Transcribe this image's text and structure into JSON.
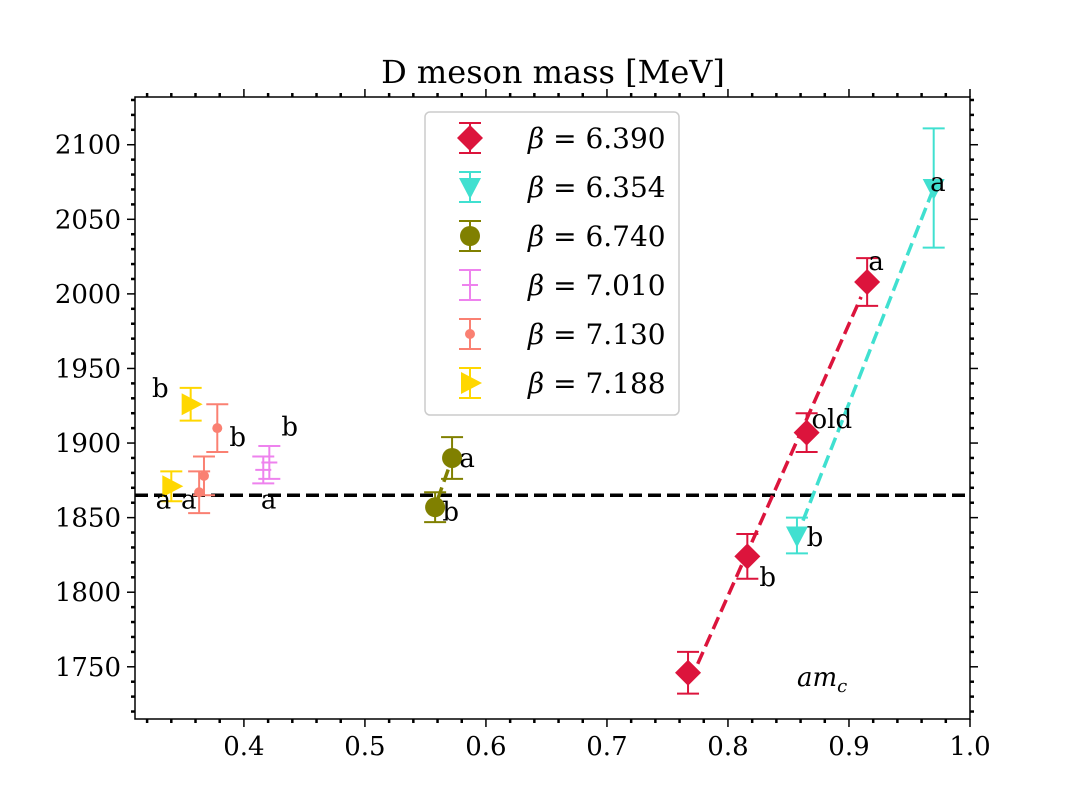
{
  "chart_data": {
    "type": "scatter",
    "title": "D meson mass [MeV]",
    "xlabel": "",
    "ylabel": "",
    "xlim": [
      0.31,
      1.0
    ],
    "ylim": [
      1715,
      2132
    ],
    "xticks": [
      0.4,
      0.5,
      0.6,
      0.7,
      0.8,
      0.9,
      1.0
    ],
    "xtick_labels": [
      "0.4",
      "0.5",
      "0.6",
      "0.7",
      "0.8",
      "0.9",
      "1.0"
    ],
    "yticks": [
      1750,
      1800,
      1850,
      1900,
      1950,
      2000,
      2050,
      2100
    ],
    "ytick_labels": [
      "1750",
      "1800",
      "1850",
      "1900",
      "1950",
      "2000",
      "2050",
      "2100"
    ],
    "legend_position": "top-center",
    "reference_line": {
      "y": 1865,
      "style": "dashed",
      "color": "#000000"
    },
    "series": [
      {
        "name": "β = 6.390",
        "beta": "6.390",
        "color": "#DC143C",
        "marker": "diamond",
        "points": [
          {
            "x": 0.767,
            "y": 1746,
            "err": 14,
            "label": ""
          },
          {
            "x": 0.816,
            "y": 1824,
            "err": 15,
            "label": "b"
          },
          {
            "x": 0.865,
            "y": 1907,
            "err": 13,
            "label": "old"
          },
          {
            "x": 0.915,
            "y": 2008,
            "err": 16,
            "label": "a"
          }
        ],
        "fit": {
          "x": [
            0.775,
            0.91
          ],
          "y": [
            1752,
            1998
          ]
        }
      },
      {
        "name": "β = 6.354",
        "beta": "6.354",
        "color": "#40E0D0",
        "marker": "triangle-down",
        "points": [
          {
            "x": 0.857,
            "y": 1838,
            "err": 12,
            "label": "b"
          },
          {
            "x": 0.97,
            "y": 2071,
            "err": 40,
            "label": "a"
          }
        ],
        "fit": {
          "x": [
            0.862,
            0.97
          ],
          "y": [
            1848,
            2071
          ]
        }
      },
      {
        "name": "β = 6.740",
        "beta": "6.740",
        "color": "#808000",
        "marker": "circle",
        "points": [
          {
            "x": 0.558,
            "y": 1857,
            "err": 10,
            "label": "b"
          },
          {
            "x": 0.572,
            "y": 1890,
            "err": 14,
            "label": "a"
          }
        ],
        "fit": {
          "x": [
            0.56,
            0.57
          ],
          "y": [
            1862,
            1885
          ]
        }
      },
      {
        "name": "β = 7.010",
        "beta": "7.010",
        "color": "#EE82EE",
        "marker": "none",
        "points": [
          {
            "x": 0.416,
            "y": 1882,
            "err": 9,
            "label": "a"
          },
          {
            "x": 0.421,
            "y": 1887,
            "err": 11,
            "label": "b"
          }
        ],
        "fit": null
      },
      {
        "name": "β = 7.130",
        "beta": "7.130",
        "color": "#FA8072",
        "marker": "small-circle",
        "points": [
          {
            "x": 0.363,
            "y": 1867,
            "err": 14,
            "label": "a"
          },
          {
            "x": 0.367,
            "y": 1878,
            "err": 13,
            "label": ""
          },
          {
            "x": 0.378,
            "y": 1910,
            "err": 16,
            "label": "b"
          }
        ],
        "fit": null
      },
      {
        "name": "β = 7.188",
        "beta": "7.188",
        "color": "#FFD700",
        "marker": "triangle-right",
        "points": [
          {
            "x": 0.34,
            "y": 1871,
            "err": 10,
            "label": "a"
          },
          {
            "x": 0.356,
            "y": 1926,
            "err": 11,
            "label": "b"
          }
        ],
        "fit": null
      }
    ],
    "annotations": [
      {
        "text": "b",
        "x": 0.324,
        "y": 1931
      },
      {
        "text": "b",
        "x": 0.388,
        "y": 1898
      },
      {
        "text": "b",
        "x": 0.431,
        "y": 1905
      },
      {
        "text": "a",
        "x": 0.327,
        "y": 1856
      },
      {
        "text": "a",
        "x": 0.348,
        "y": 1856
      },
      {
        "text": "a",
        "x": 0.414,
        "y": 1856
      },
      {
        "text": "a",
        "x": 0.578,
        "y": 1884
      },
      {
        "text": "b",
        "x": 0.564,
        "y": 1848
      },
      {
        "text": "a",
        "x": 0.916,
        "y": 2016
      },
      {
        "text": "a",
        "x": 0.967,
        "y": 2069
      },
      {
        "text": "old",
        "x": 0.869,
        "y": 1910
      },
      {
        "text": "b",
        "x": 0.826,
        "y": 1804
      },
      {
        "text": "b",
        "x": 0.865,
        "y": 1831
      }
    ],
    "axis_note": {
      "text": "am",
      "subscript": "c",
      "x": 0.857,
      "y": 1737
    }
  }
}
